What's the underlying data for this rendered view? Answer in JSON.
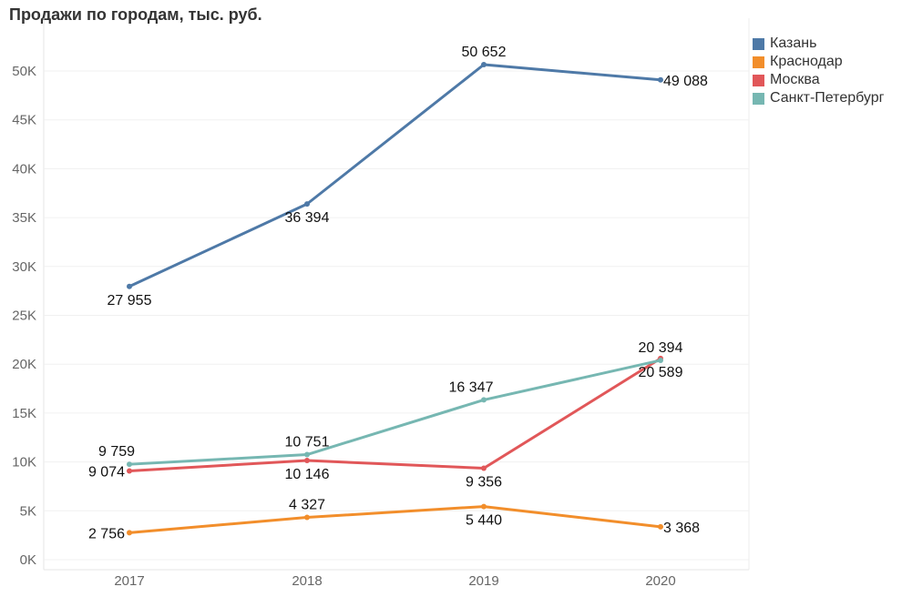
{
  "chart_data": {
    "type": "line",
    "title": "Продажи по городам, тыс. руб.",
    "xlabel": "",
    "ylabel": "",
    "x": [
      "2017",
      "2018",
      "2019",
      "2020"
    ],
    "ylim": [
      0,
      50000
    ],
    "yticks": [
      {
        "value": 0,
        "label": "0K"
      },
      {
        "value": 5000,
        "label": "5K"
      },
      {
        "value": 10000,
        "label": "10K"
      },
      {
        "value": 15000,
        "label": "15K"
      },
      {
        "value": 20000,
        "label": "20K"
      },
      {
        "value": 25000,
        "label": "25K"
      },
      {
        "value": 30000,
        "label": "30K"
      },
      {
        "value": 35000,
        "label": "35K"
      },
      {
        "value": 40000,
        "label": "40K"
      },
      {
        "value": 45000,
        "label": "45K"
      },
      {
        "value": 50000,
        "label": "50K"
      }
    ],
    "grid": true,
    "legend": "top-right",
    "series": [
      {
        "name": "Казань",
        "color": "#4e79a7",
        "values": [
          27955,
          36394,
          50652,
          49088
        ],
        "labels": [
          "27 955",
          "36 394",
          "50 652",
          "49 088"
        ],
        "label_pos": [
          "below",
          "below",
          "above",
          "right"
        ]
      },
      {
        "name": "Краснодар",
        "color": "#f28e2b",
        "values": [
          2756,
          4327,
          5440,
          3368
        ],
        "labels": [
          "2 756",
          "4 327",
          "5 440",
          "3 368"
        ],
        "label_pos": [
          "left",
          "above",
          "below",
          "right"
        ]
      },
      {
        "name": "Москва",
        "color": "#e15759",
        "values": [
          9074,
          10146,
          9356,
          20589
        ],
        "labels": [
          "9 074",
          "10 146",
          "9 356",
          "20 589"
        ],
        "label_pos": [
          "left",
          "below",
          "below",
          "below"
        ]
      },
      {
        "name": "Санкт-Петербург",
        "color": "#76b7b2",
        "values": [
          9759,
          10751,
          16347,
          20394
        ],
        "labels": [
          "9 759",
          "10 751",
          "16 347",
          "20 394"
        ],
        "label_pos": [
          "aboveleft",
          "above",
          "aboveleft",
          "above"
        ]
      }
    ]
  }
}
